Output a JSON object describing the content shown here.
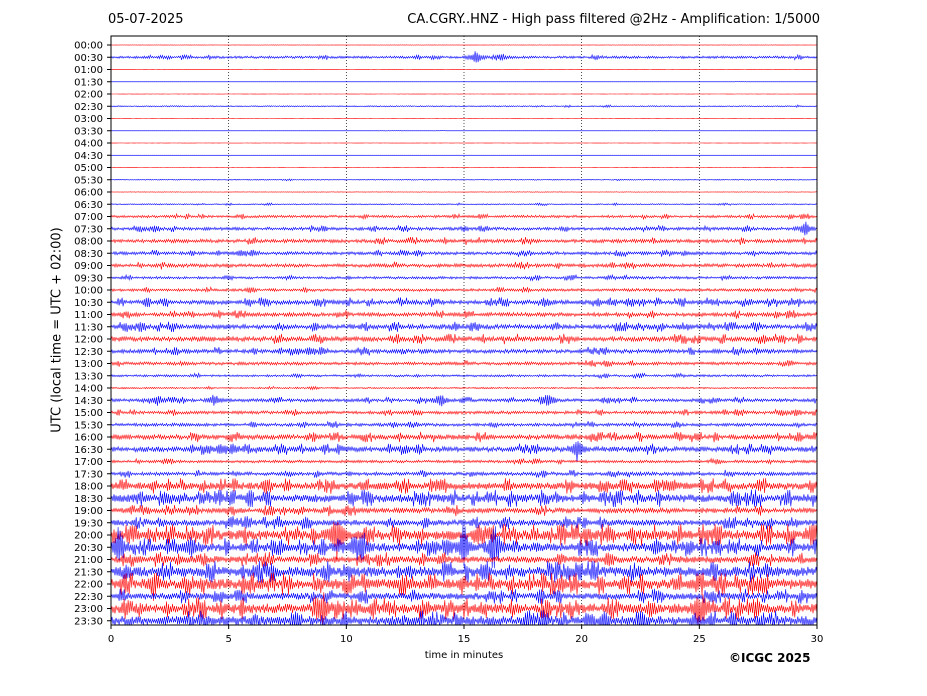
{
  "header": {
    "date": "05-07-2025",
    "title": "CA.CGRY..HNZ - High pass filtered @2Hz - Amplification: 1/5000"
  },
  "footer": {
    "copyright": "©ICGC 2025"
  },
  "chart_data": {
    "type": "line",
    "title": "CA.CGRY..HNZ - High pass filtered @2Hz - Amplification: 1/5000",
    "xlabel": "time in minutes",
    "ylabel": "UTC (local time = UTC + 02:00)",
    "xlim": [
      0,
      30
    ],
    "x_ticks": [
      0,
      5,
      10,
      15,
      20,
      25,
      30
    ],
    "vertical_gridlines": [
      5,
      10,
      15,
      20,
      25
    ],
    "colors": {
      "red_traces": "#ff0000",
      "blue_traces": "#0000ff"
    },
    "rows": [
      "00:00",
      "00:30",
      "01:00",
      "01:30",
      "02:00",
      "02:30",
      "03:00",
      "03:30",
      "04:00",
      "04:30",
      "05:00",
      "05:30",
      "06:00",
      "06:30",
      "07:00",
      "07:30",
      "08:00",
      "08:30",
      "09:00",
      "09:30",
      "10:00",
      "10:30",
      "11:00",
      "11:30",
      "12:00",
      "12:30",
      "13:00",
      "13:30",
      "14:00",
      "14:30",
      "15:00",
      "15:30",
      "16:00",
      "16:30",
      "17:00",
      "17:30",
      "18:00",
      "18:30",
      "19:00",
      "19:30",
      "20:00",
      "20:30",
      "21:00",
      "21:30",
      "22:00",
      "22:30",
      "23:00",
      "23:30"
    ],
    "row_colors": [
      "red",
      "blue",
      "red",
      "blue",
      "red",
      "blue",
      "red",
      "blue",
      "red",
      "blue",
      "red",
      "blue",
      "red",
      "blue",
      "red",
      "blue",
      "red",
      "blue",
      "red",
      "blue",
      "red",
      "blue",
      "red",
      "blue",
      "red",
      "blue",
      "red",
      "blue",
      "red",
      "blue",
      "red",
      "blue",
      "red",
      "blue",
      "red",
      "blue",
      "red",
      "blue",
      "red",
      "blue",
      "red",
      "blue",
      "red",
      "blue",
      "red",
      "blue",
      "red",
      "blue"
    ],
    "row_activity": [
      0.2,
      1.2,
      0.15,
      0.1,
      0.1,
      0.6,
      0.1,
      0.1,
      0.1,
      0.1,
      0.1,
      0.5,
      0.3,
      0.6,
      1.3,
      1.6,
      1.8,
      1.6,
      1.8,
      1.3,
      1.4,
      2.2,
      2.0,
      2.4,
      2.4,
      2.0,
      1.6,
      1.1,
      0.8,
      1.6,
      1.6,
      1.6,
      2.4,
      2.6,
      1.4,
      1.8,
      3.6,
      4.0,
      2.6,
      3.0,
      5.0,
      4.2,
      3.4,
      5.0,
      5.2,
      3.4,
      5.0,
      4.8
    ],
    "events": [
      {
        "row": "00:30",
        "x": 15.5,
        "amp": 8
      },
      {
        "row": "00:30",
        "x": 16.6,
        "amp": 4
      },
      {
        "row": "07:30",
        "x": 29.5,
        "amp": 7
      },
      {
        "row": "14:30",
        "x": 2.0,
        "amp": 6
      },
      {
        "row": "14:30",
        "x": 4.4,
        "amp": 6
      },
      {
        "row": "14:30",
        "x": 14.0,
        "amp": 8
      },
      {
        "row": "14:30",
        "x": 18.6,
        "amp": 8
      },
      {
        "row": "16:30",
        "x": 19.8,
        "amp": 11
      },
      {
        "row": "20:00",
        "x": 9.6,
        "amp": 22
      },
      {
        "row": "20:30",
        "x": 0.3,
        "amp": 16
      },
      {
        "row": "20:30",
        "x": 3.4,
        "amp": 10
      },
      {
        "row": "20:30",
        "x": 10.6,
        "amp": 16
      },
      {
        "row": "20:30",
        "x": 15.0,
        "amp": 20
      },
      {
        "row": "20:30",
        "x": 16.3,
        "amp": 22
      },
      {
        "row": "20:30",
        "x": 23.2,
        "amp": 8
      },
      {
        "row": "22:00",
        "x": 1.8,
        "amp": 14
      },
      {
        "row": "23:00",
        "x": 9.0,
        "amp": 12
      },
      {
        "row": "23:00",
        "x": 25.0,
        "amp": 12
      }
    ]
  }
}
